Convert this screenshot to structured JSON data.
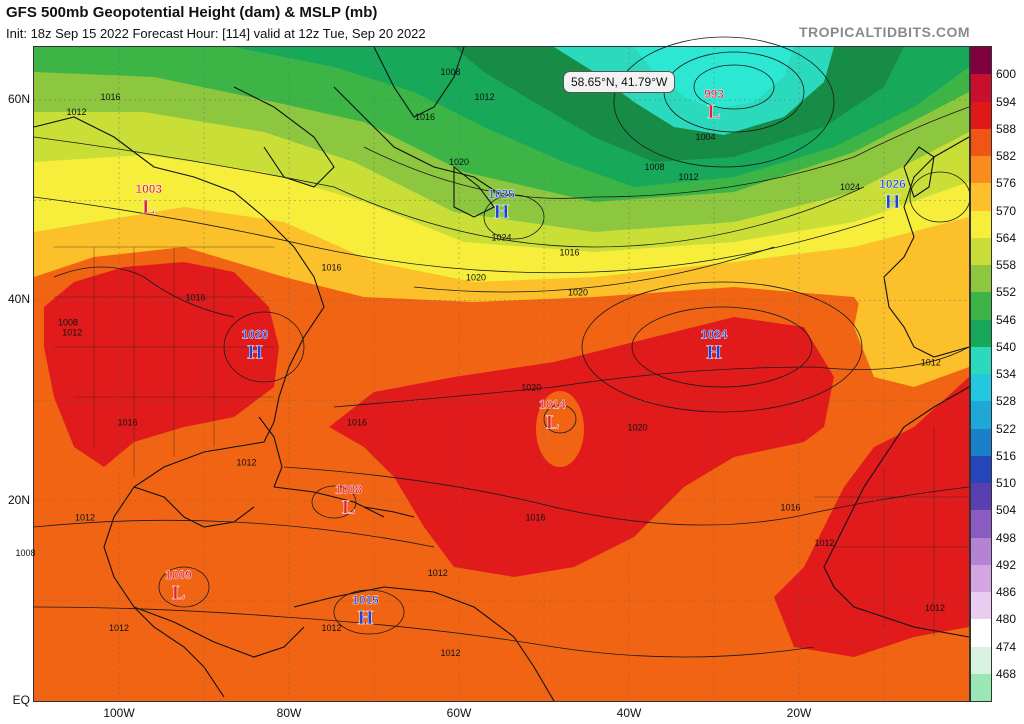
{
  "header": {
    "title": "GFS 500mb Geopotential Height (dam) & MSLP (mb)",
    "subtitle": "Init: 18z Sep 15 2022   Forecast Hour: [114]   valid at 12z Tue, Sep 20 2022",
    "brand": "TROPICALTIDBITS.COM"
  },
  "map": {
    "lat_labels": [
      "60N",
      "40N",
      "20N",
      "EQ"
    ],
    "lon_labels": [
      "100W",
      "80W",
      "60W",
      "40W",
      "20W"
    ],
    "cursor_readout": "58.65°N, 41.79°W"
  },
  "pressure_centers": [
    {
      "type": "L",
      "value": "993",
      "lat": 59.0,
      "lon": -30.0
    },
    {
      "type": "L",
      "value": "1003",
      "lat": 49.5,
      "lon": -96.5
    },
    {
      "type": "H",
      "value": "1025",
      "lat": 49.0,
      "lon": -55.0
    },
    {
      "type": "H",
      "value": "1026",
      "lat": 50.0,
      "lon": -9.0
    },
    {
      "type": "H",
      "value": "1020",
      "lat": 35.0,
      "lon": -84.0
    },
    {
      "type": "H",
      "value": "1024",
      "lat": 35.0,
      "lon": -30.0
    },
    {
      "type": "L",
      "value": "1014",
      "lat": 28.0,
      "lon": -49.0
    },
    {
      "type": "L",
      "value": "1008",
      "lat": 19.5,
      "lon": -73.0
    },
    {
      "type": "L",
      "value": "1009",
      "lat": 11.0,
      "lon": -93.0
    },
    {
      "type": "H",
      "value": "1015",
      "lat": 8.5,
      "lon": -71.0
    }
  ],
  "isobar_labels": [
    {
      "value": "1008",
      "lat": 62.5,
      "lon": -61.0
    },
    {
      "value": "1012",
      "lat": 60.0,
      "lon": -57.0
    },
    {
      "value": "1016",
      "lat": 60.0,
      "lon": -101.0
    },
    {
      "value": "1012",
      "lat": 58.5,
      "lon": -105.0
    },
    {
      "value": "1016",
      "lat": 58.0,
      "lon": -64.0
    },
    {
      "value": "1020",
      "lat": 53.5,
      "lon": -60.0
    },
    {
      "value": "1004",
      "lat": 56.0,
      "lon": -31.0
    },
    {
      "value": "1008",
      "lat": 53.0,
      "lon": -37.0
    },
    {
      "value": "1012",
      "lat": 52.0,
      "lon": -33.0
    },
    {
      "value": "1024",
      "lat": 51.0,
      "lon": -14.0
    },
    {
      "value": "1024",
      "lat": 46.0,
      "lon": -55.0
    },
    {
      "value": "1016",
      "lat": 43.0,
      "lon": -75.0
    },
    {
      "value": "1016",
      "lat": 44.5,
      "lon": -47.0
    },
    {
      "value": "1020",
      "lat": 42.0,
      "lon": -58.0
    },
    {
      "value": "1020",
      "lat": 40.5,
      "lon": -46.0
    },
    {
      "value": "1016",
      "lat": 40.0,
      "lon": -91.0
    },
    {
      "value": "1008",
      "lat": 37.5,
      "lon": -106.0
    },
    {
      "value": "1012",
      "lat": 36.5,
      "lon": -105.5
    },
    {
      "value": "1020",
      "lat": 31.0,
      "lon": -51.5
    },
    {
      "value": "1016",
      "lat": 27.5,
      "lon": -99.0
    },
    {
      "value": "1016",
      "lat": 27.5,
      "lon": -72.0
    },
    {
      "value": "1020",
      "lat": 27.0,
      "lon": -39.0
    },
    {
      "value": "1012",
      "lat": 23.5,
      "lon": -85.0
    },
    {
      "value": "1016",
      "lat": 19.0,
      "lon": -21.0
    },
    {
      "value": "1016",
      "lat": 18.0,
      "lon": -51.0
    },
    {
      "value": "1012",
      "lat": 15.5,
      "lon": -17.0
    },
    {
      "value": "1012",
      "lat": 18.0,
      "lon": -104.0
    },
    {
      "value": "1008",
      "lat": 14.5,
      "lon": -111.0
    },
    {
      "value": "1012",
      "lat": 12.5,
      "lon": -62.5
    },
    {
      "value": "1012",
      "lat": 7.0,
      "lon": -100.0
    },
    {
      "value": "1012",
      "lat": 7.0,
      "lon": -75.0
    },
    {
      "value": "1012",
      "lat": 4.5,
      "lon": -61.0
    },
    {
      "value": "1012",
      "lat": 33.5,
      "lon": -4.5
    },
    {
      "value": "1012",
      "lat": 9.0,
      "lon": -4.0
    }
  ],
  "colorbar": {
    "labels": [
      "600",
      "594",
      "588",
      "582",
      "576",
      "570",
      "564",
      "558",
      "552",
      "546",
      "540",
      "534",
      "528",
      "522",
      "516",
      "510",
      "504",
      "498",
      "492",
      "486",
      "480",
      "474",
      "468"
    ],
    "colors": [
      "#7f003f",
      "#c8102e",
      "#e01818",
      "#ef5514",
      "#fa8c1e",
      "#fbc02a",
      "#f7ee3c",
      "#c9df38",
      "#8dc63f",
      "#3cb546",
      "#17a85a",
      "#2bd9bc",
      "#22c8e0",
      "#1fa8d6",
      "#1a80c8",
      "#2546b8",
      "#5a3fb0",
      "#8a5cc2",
      "#b483d4",
      "#d3a6e2",
      "#e8cdf0",
      "#ffffff",
      "#d8f2e0",
      "#9be6b5"
    ],
    "key_colors": {
      "ocean_ridge": "#e11b1b",
      "subtropics": "#f06414",
      "trough": "#168c46",
      "deep_low": "#2ce8d2"
    }
  }
}
